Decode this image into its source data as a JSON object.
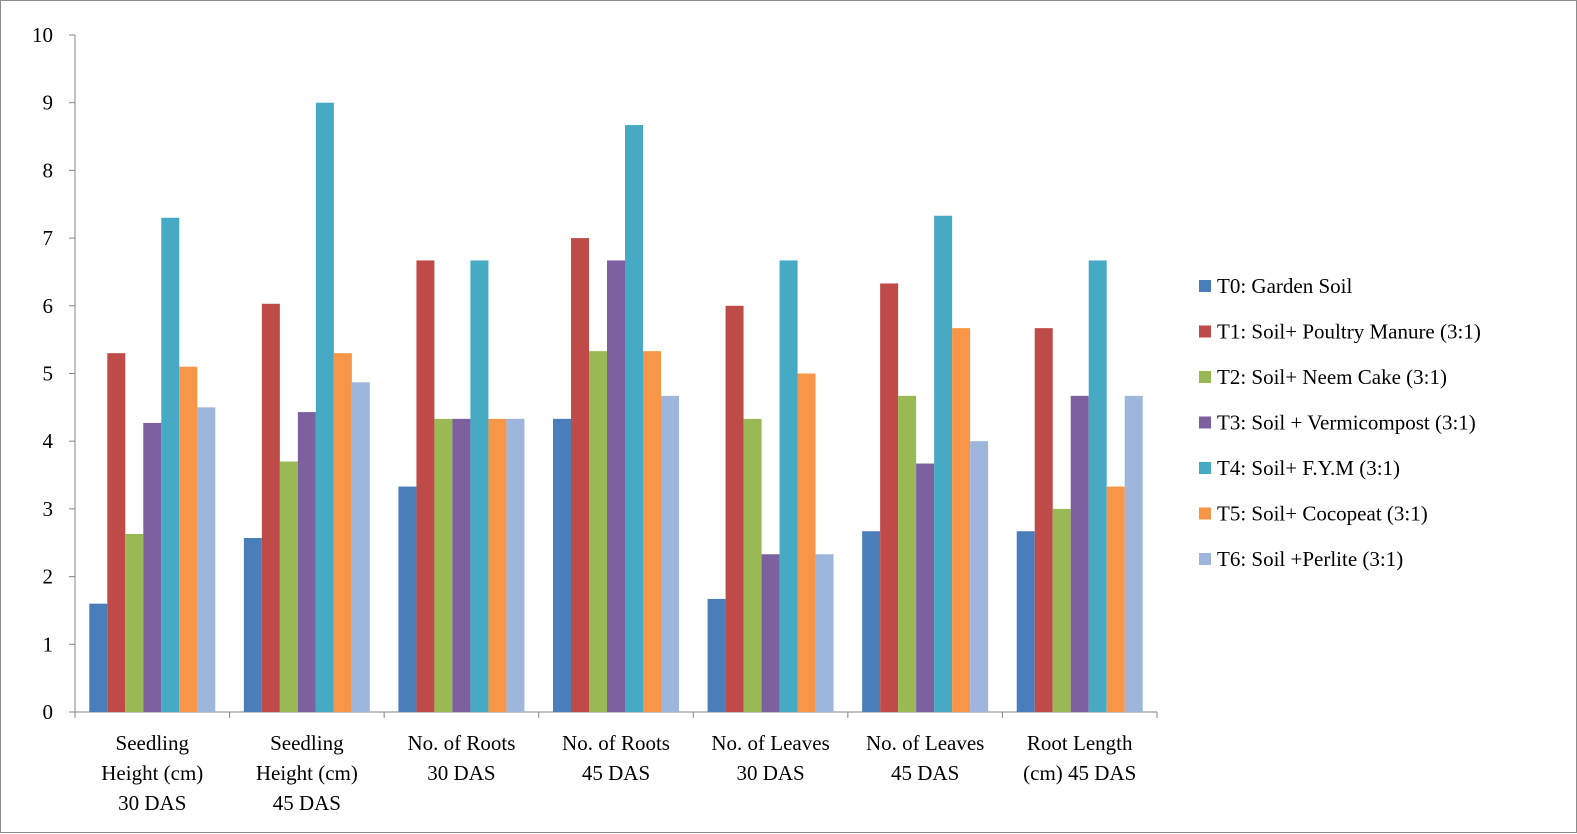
{
  "chart_data": {
    "type": "bar",
    "title": "",
    "xlabel": "",
    "ylabel": "",
    "ylim": [
      0,
      10
    ],
    "yticks": [
      0,
      1,
      2,
      3,
      4,
      5,
      6,
      7,
      8,
      9,
      10
    ],
    "grid": false,
    "legend_position": "right",
    "categories": [
      [
        "Seedling",
        "Height (cm)",
        "30 DAS"
      ],
      [
        "Seedling",
        "Height (cm)",
        "45 DAS"
      ],
      [
        "No. of Roots",
        "30 DAS"
      ],
      [
        "No. of Roots",
        "45 DAS"
      ],
      [
        "No. of Leaves",
        "30 DAS"
      ],
      [
        "No. of Leaves",
        "45 DAS"
      ],
      [
        "Root Length",
        "(cm) 45 DAS"
      ]
    ],
    "series": [
      {
        "name": "T0: Garden Soil",
        "color": "#4a7ebb",
        "values": [
          1.6,
          2.57,
          3.33,
          4.33,
          1.67,
          2.67,
          2.67
        ]
      },
      {
        "name": "T1: Soil+ Poultry Manure (3:1)",
        "color": "#be4b48",
        "values": [
          5.3,
          6.03,
          6.67,
          7.0,
          6.0,
          6.33,
          5.67
        ]
      },
      {
        "name": "T2: Soil+ Neem Cake (3:1)",
        "color": "#98b954",
        "values": [
          2.63,
          3.7,
          4.33,
          5.33,
          4.33,
          4.67,
          3.0
        ]
      },
      {
        "name": "T3: Soil + Vermicompost (3:1)",
        "color": "#7d60a0",
        "values": [
          4.27,
          4.43,
          4.33,
          6.67,
          2.33,
          3.67,
          4.67
        ]
      },
      {
        "name": "T4: Soil+ F.Y.M (3:1)",
        "color": "#46aac5",
        "values": [
          7.3,
          9.0,
          6.67,
          8.67,
          6.67,
          7.33,
          6.67
        ]
      },
      {
        "name": "T5: Soil+ Cocopeat (3:1)",
        "color": "#f79646",
        "values": [
          5.1,
          5.3,
          4.33,
          5.33,
          5.0,
          5.67,
          3.33
        ]
      },
      {
        "name": "T6: Soil +Perlite (3:1)",
        "color": "#9eb6dc",
        "values": [
          4.5,
          4.87,
          4.33,
          4.67,
          2.33,
          4.0,
          4.67
        ]
      }
    ]
  }
}
